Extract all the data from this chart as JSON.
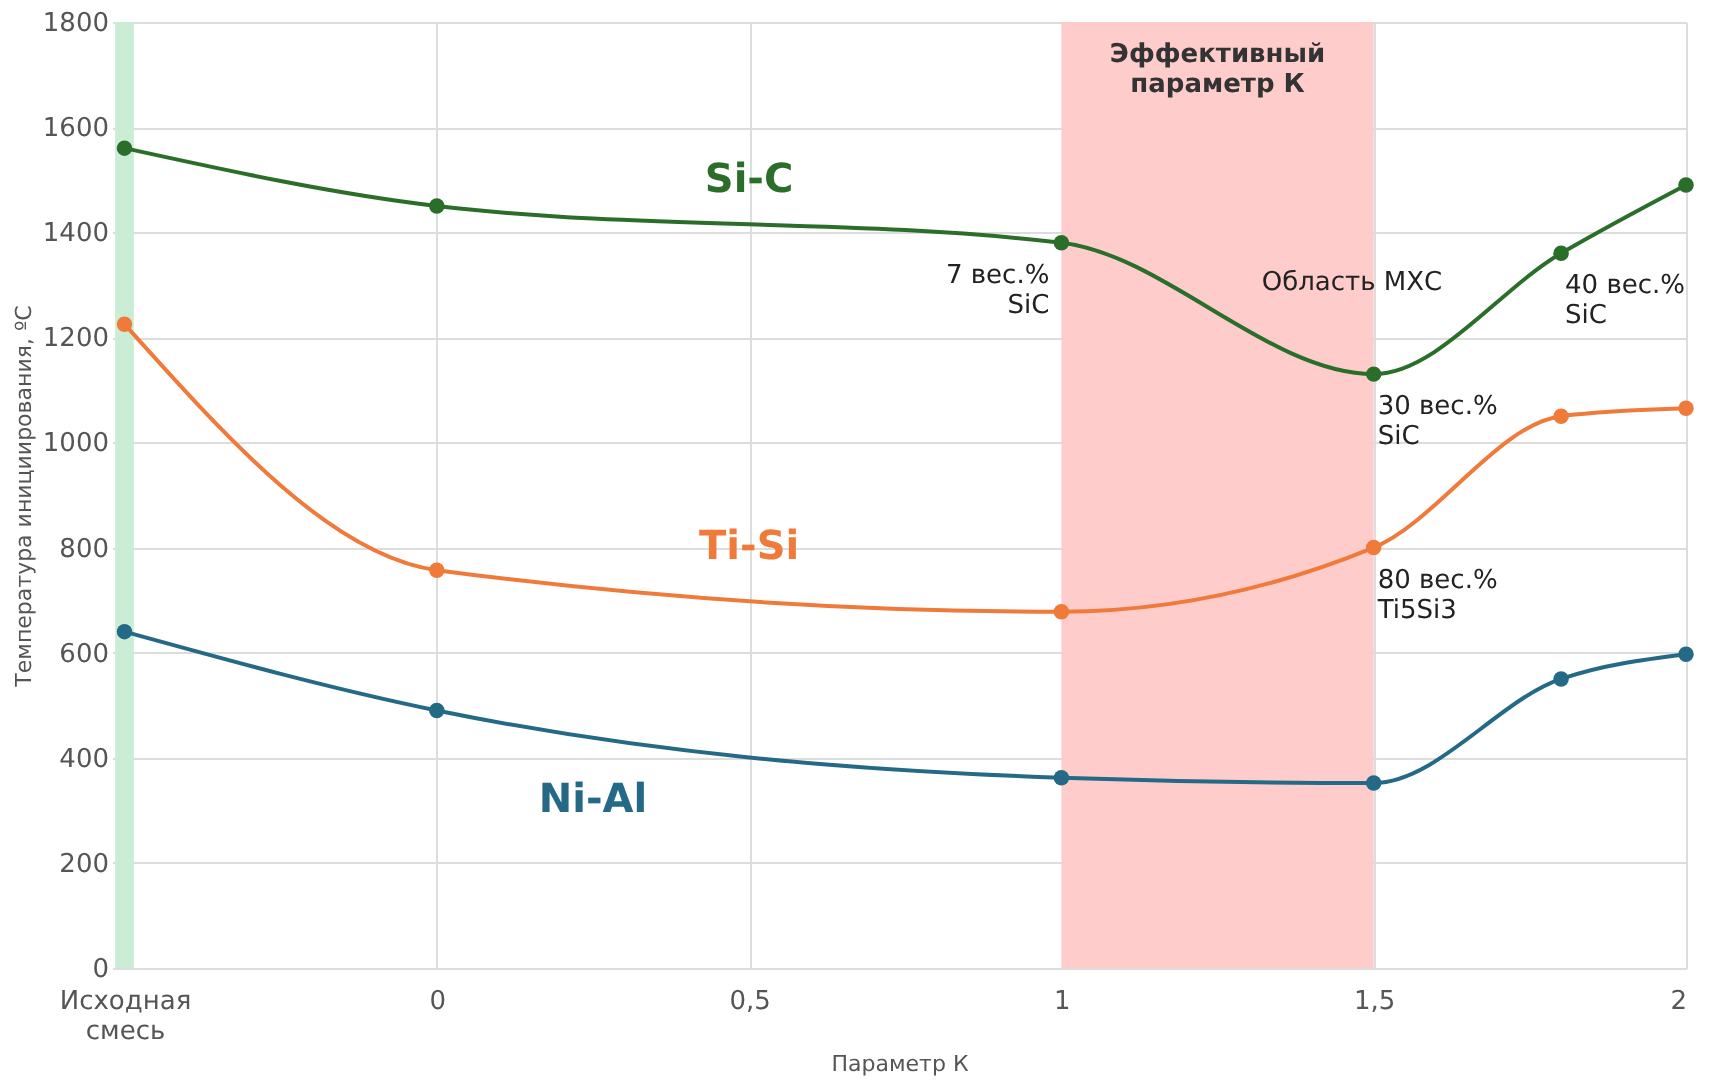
{
  "chart_data": {
    "type": "line",
    "xlabel": "Параметр К",
    "ylabel": "Температура инициирования, ºС",
    "x": [
      -0.5,
      0,
      1,
      1.5,
      1.8,
      2
    ],
    "xlim": [
      -0.52,
      2
    ],
    "xticks": [
      {
        "value": -0.5,
        "label": "Исходная\nсмесь"
      },
      0,
      {
        "value": 0.5,
        "label": "0,5"
      },
      1,
      {
        "value": 1.5,
        "label": "1,5"
      },
      2
    ],
    "ylim": [
      0,
      1800
    ],
    "yticks": [
      0,
      200,
      400,
      600,
      800,
      1000,
      1200,
      1400,
      1600,
      1800
    ],
    "series": [
      {
        "name": "Si-C",
        "color": "#2a6e2a",
        "values": [
          1560,
          1450,
          1380,
          1130,
          1360,
          1490
        ]
      },
      {
        "name": "Ti-Si",
        "color": "#f07a3a",
        "values": [
          1225,
          757,
          678,
          800,
          1050,
          1065
        ]
      },
      {
        "name": "Ni-Al",
        "color": "#246a86",
        "values": [
          640,
          490,
          362,
          352,
          550,
          597
        ]
      }
    ],
    "bands": [
      {
        "axis": "x",
        "from": -0.515,
        "to": -0.485,
        "color": "#c8ecd4"
      },
      {
        "axis": "x",
        "from": 1,
        "to": 1.5,
        "color": "#ffc9c9",
        "label": "Эффективный\nпараметр К"
      }
    ],
    "annotations": [
      "Область МХС",
      {
        "text": "7 вес.%\nSiC",
        "x": 1,
        "y": 1380
      },
      {
        "text": "40 вес.%\nSiC",
        "x": 1.8,
        "y": 1360
      },
      {
        "text": "30 вес.%\nSiC",
        "x": 1.5,
        "y": 1130
      },
      {
        "text": "80 вес.%\nTi5Si3",
        "x": 1.5,
        "y": 800
      }
    ],
    "grid": true,
    "marker": "circle",
    "line_style": "solid"
  }
}
